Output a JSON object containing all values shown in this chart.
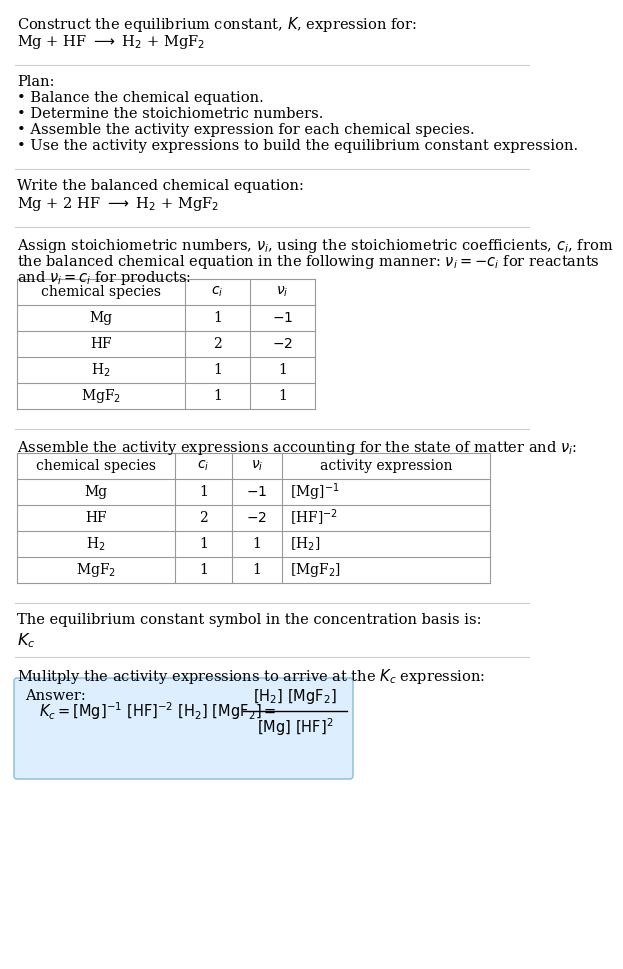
{
  "bg_color": "#ffffff",
  "text_color": "#000000",
  "table_border_color": "#999999",
  "separator_color": "#cccccc",
  "answer_box_color": "#ddeeff",
  "answer_box_border": "#88bbdd",
  "sec1_line1": "Construct the equilibrium constant, $K$, expression for:",
  "sec1_line2": "Mg + HF $\\longrightarrow$ H$_2$ + MgF$_2$",
  "sec2_header": "Plan:",
  "sec2_items": [
    "\\u2022 Balance the chemical equation.",
    "\\u2022 Determine the stoichiometric numbers.",
    "\\u2022 Assemble the activity expression for each chemical species.",
    "\\u2022 Use the activity expressions to build the equilibrium constant expression."
  ],
  "sec3_header": "Write the balanced chemical equation:",
  "sec3_eq": "Mg + 2 HF $\\longrightarrow$ H$_2$ + MgF$_2$",
  "sec4_line1": "Assign stoichiometric numbers, $\\nu_i$, using the stoichiometric coefficients, $c_i$, from",
  "sec4_line2": "the balanced chemical equation in the following manner: $\\nu_i = -c_i$ for reactants",
  "sec4_line3": "and $\\nu_i = c_i$ for products:",
  "table1_headers": [
    "chemical species",
    "$c_i$",
    "$\\nu_i$"
  ],
  "table1_data": [
    [
      "Mg",
      "1",
      "$-1$"
    ],
    [
      "HF",
      "2",
      "$-2$"
    ],
    [
      "H$_2$",
      "1",
      "1"
    ],
    [
      "MgF$_2$",
      "1",
      "1"
    ]
  ],
  "sec5_line1": "Assemble the activity expressions accounting for the state of matter and $\\nu_i$:",
  "table2_headers": [
    "chemical species",
    "$c_i$",
    "$\\nu_i$",
    "activity expression"
  ],
  "table2_data": [
    [
      "Mg",
      "1",
      "$-1$",
      "[Mg]$^{-1}$"
    ],
    [
      "HF",
      "2",
      "$-2$",
      "[HF]$^{-2}$"
    ],
    [
      "H$_2$",
      "1",
      "1",
      "[H$_2$]"
    ],
    [
      "MgF$_2$",
      "1",
      "1",
      "[MgF$_2$]"
    ]
  ],
  "sec6_line1": "The equilibrium constant symbol in the concentration basis is:",
  "sec6_symbol": "$K_c$",
  "sec7_line1": "Mulitply the activity expressions to arrive at the $K_c$ expression:",
  "answer_label": "Answer:"
}
